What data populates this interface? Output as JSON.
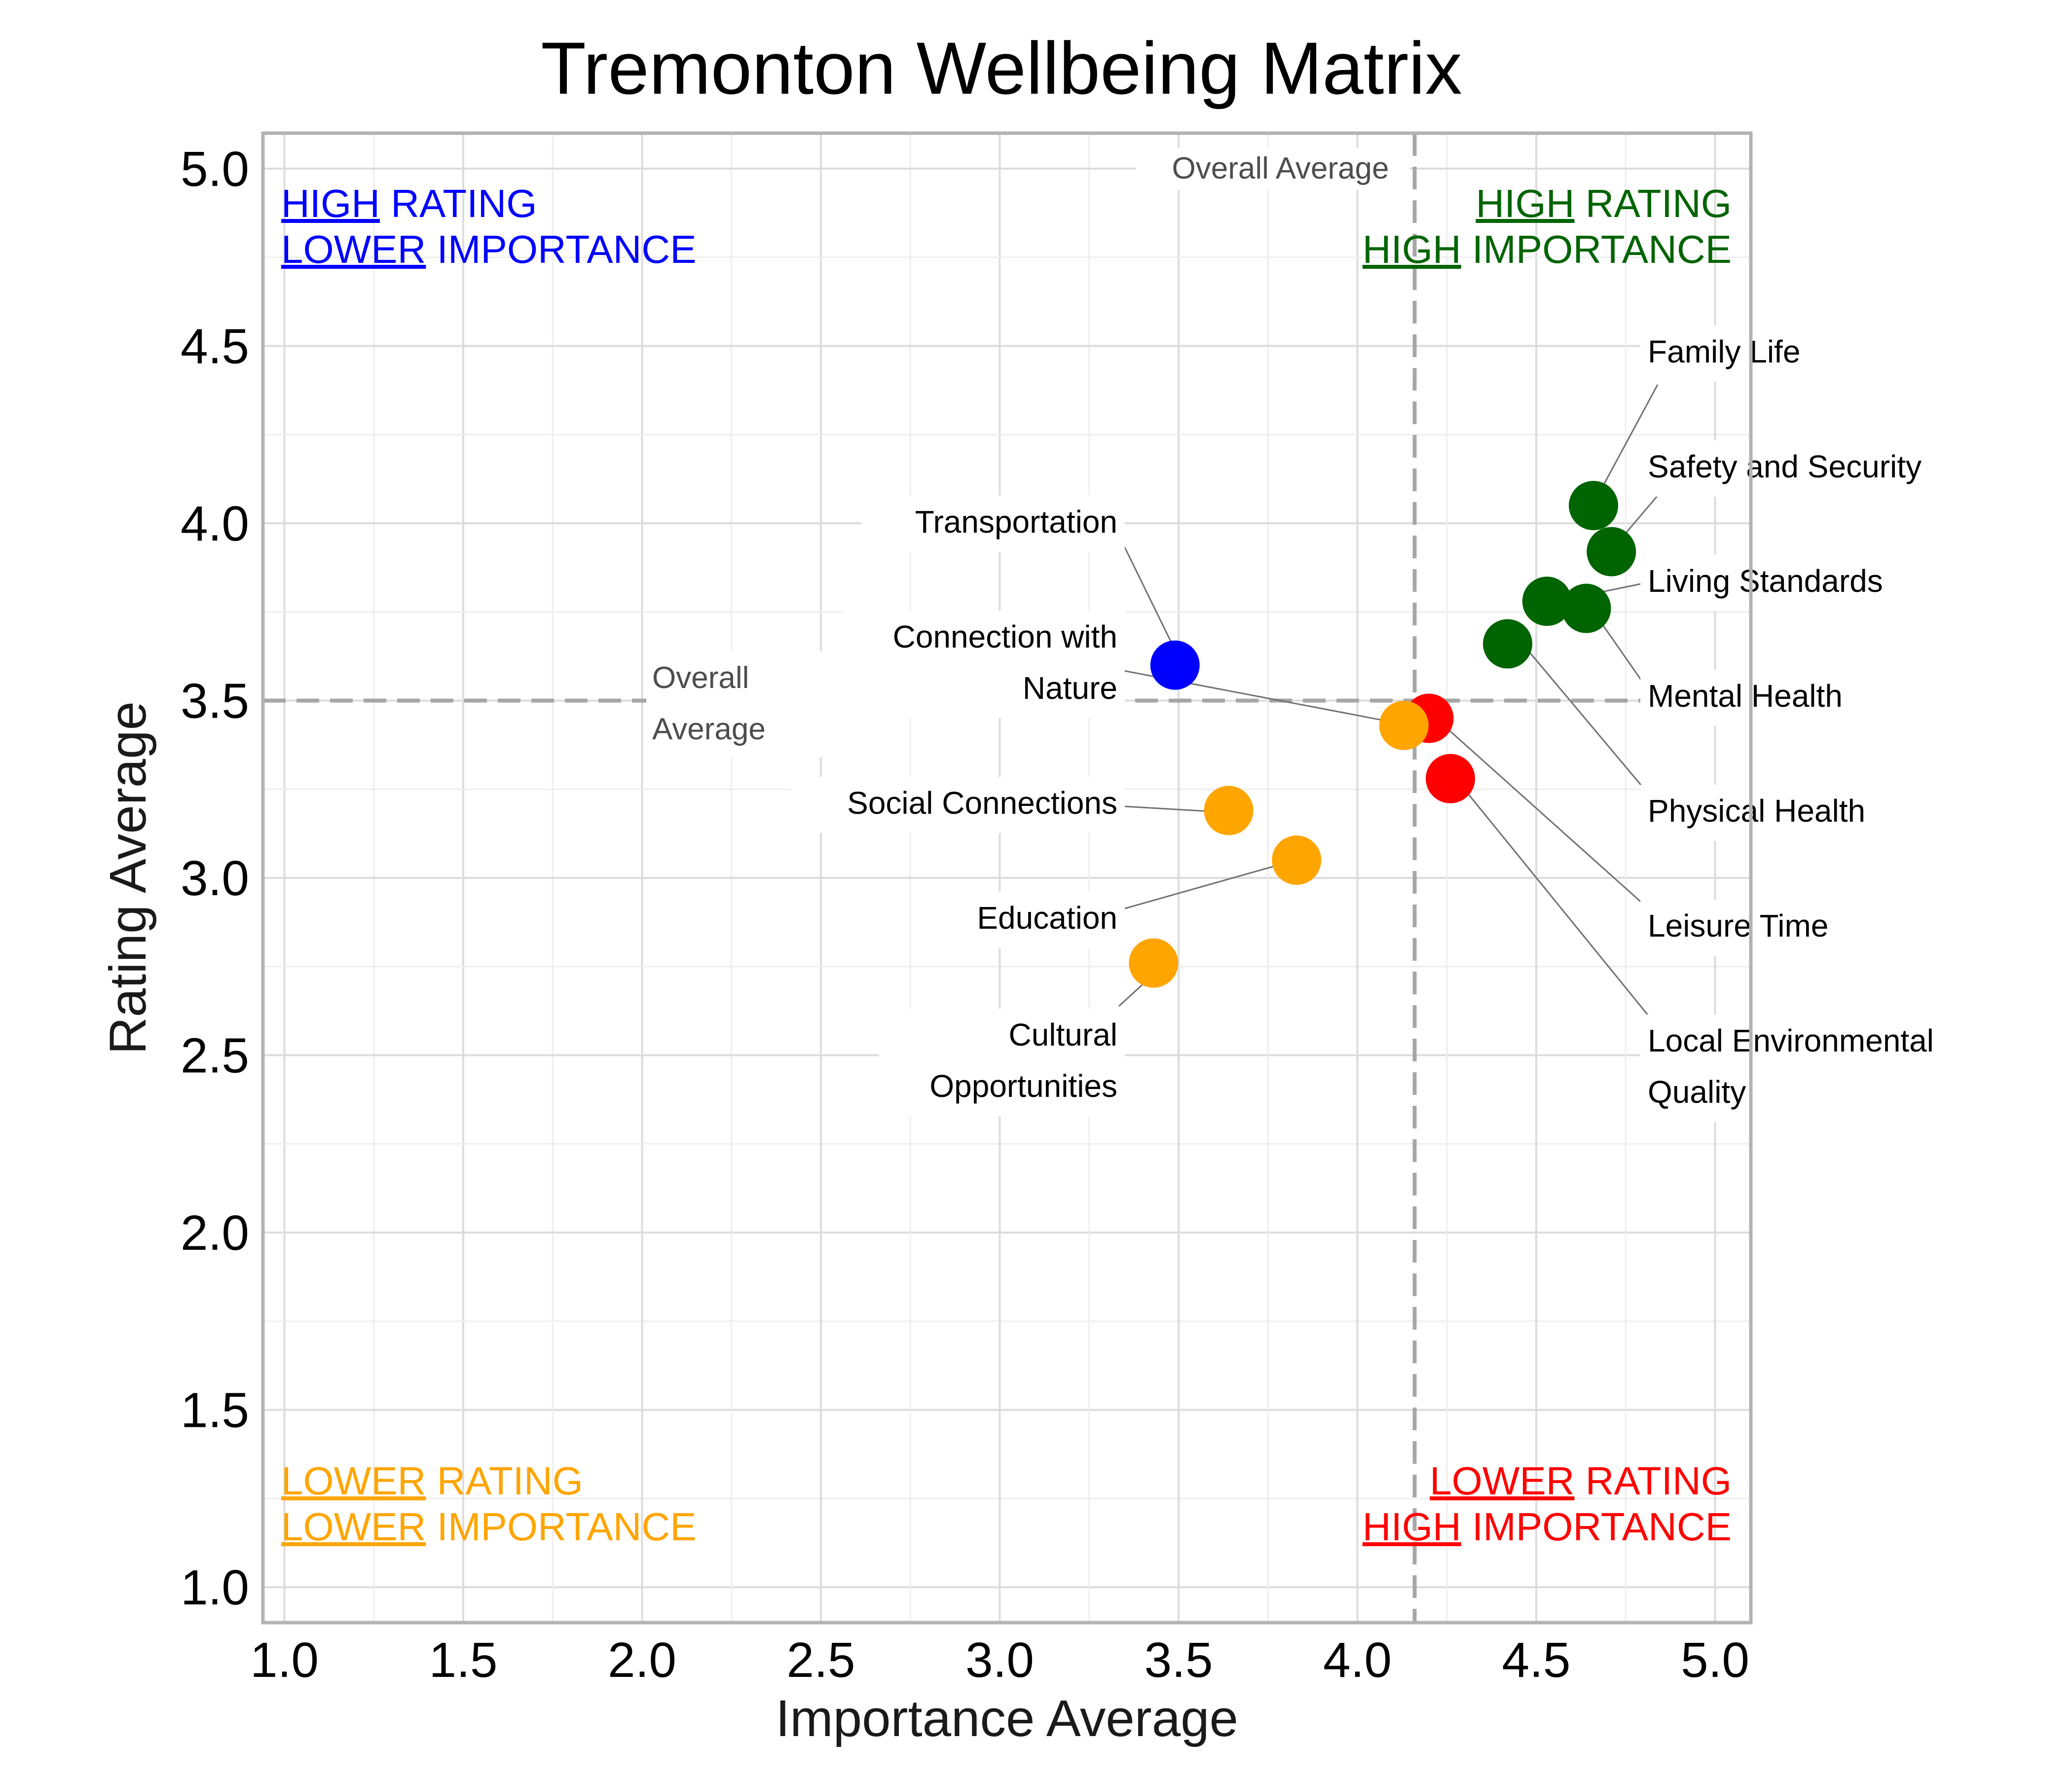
{
  "chart_data": {
    "type": "scatter",
    "title": "Tremonton Wellbeing Matrix",
    "xlabel": "Importance Average",
    "ylabel": "Rating Average",
    "xlim": [
      0.94,
      5.1
    ],
    "ylim": [
      0.9,
      5.1
    ],
    "x_ticks": [
      "1.0",
      "1.5",
      "2.0",
      "2.5",
      "3.0",
      "3.5",
      "4.0",
      "4.5",
      "5.0"
    ],
    "y_ticks": [
      "1.0",
      "1.5",
      "2.0",
      "2.5",
      "3.0",
      "3.5",
      "4.0",
      "4.5",
      "5.0"
    ],
    "grid": true,
    "reference_lines": {
      "x_average": 4.16,
      "y_average": 3.5,
      "x_label": "Overall Average",
      "y_label_lines": [
        "Overall",
        "Average"
      ]
    },
    "quadrants": [
      {
        "key": "top-left",
        "color": "#0000ff",
        "lines": [
          [
            "HIGH",
            " RATING"
          ],
          [
            "LOWER",
            " IMPORTANCE"
          ]
        ]
      },
      {
        "key": "top-right",
        "color": "#006400",
        "lines": [
          [
            "HIGH",
            " RATING"
          ],
          [
            "HIGH",
            " IMPORTANCE"
          ]
        ]
      },
      {
        "key": "bottom-left",
        "color": "#ffa500",
        "lines": [
          [
            "LOWER",
            " RATING"
          ],
          [
            "LOWER",
            " IMPORTANCE"
          ]
        ]
      },
      {
        "key": "bottom-right",
        "color": "#ff0000",
        "lines": [
          [
            "LOWER",
            " RATING"
          ],
          [
            "HIGH",
            " IMPORTANCE"
          ]
        ]
      }
    ],
    "points": [
      {
        "name": "Family Life",
        "label_lines": [
          "Family Life"
        ],
        "x": 4.66,
        "y": 4.05,
        "color": "#006400"
      },
      {
        "name": "Safety and Security",
        "label_lines": [
          "Safety and Security"
        ],
        "x": 4.71,
        "y": 3.92,
        "color": "#006400"
      },
      {
        "name": "Living Standards",
        "label_lines": [
          "Living Standards"
        ],
        "x": 4.53,
        "y": 3.78,
        "color": "#006400"
      },
      {
        "name": "Mental Health",
        "label_lines": [
          "Mental Health"
        ],
        "x": 4.64,
        "y": 3.76,
        "color": "#006400"
      },
      {
        "name": "Physical Health",
        "label_lines": [
          "Physical Health"
        ],
        "x": 4.42,
        "y": 3.66,
        "color": "#006400"
      },
      {
        "name": "Leisure Time",
        "label_lines": [
          "Leisure Time"
        ],
        "x": 4.2,
        "y": 3.45,
        "color": "#ff0000"
      },
      {
        "name": "Local Environmental Quality",
        "label_lines": [
          "Local Environmental",
          "Quality"
        ],
        "x": 4.26,
        "y": 3.28,
        "color": "#ff0000"
      },
      {
        "name": "Transportation",
        "label_lines": [
          "Transportation"
        ],
        "x": 3.49,
        "y": 3.6,
        "color": "#0000ff"
      },
      {
        "name": "Connection with Nature",
        "label_lines": [
          "Connection with",
          "Nature"
        ],
        "x": 4.13,
        "y": 3.43,
        "color": "#ffa500"
      },
      {
        "name": "Social Connections",
        "label_lines": [
          "Social Connections"
        ],
        "x": 3.64,
        "y": 3.19,
        "color": "#ffa500"
      },
      {
        "name": "Education",
        "label_lines": [
          "Education"
        ],
        "x": 3.83,
        "y": 3.05,
        "color": "#ffa500"
      },
      {
        "name": "Cultural Opportunities",
        "label_lines": [
          "Cultural",
          "Opportunities"
        ],
        "x": 3.43,
        "y": 2.76,
        "color": "#ffa500"
      }
    ]
  }
}
